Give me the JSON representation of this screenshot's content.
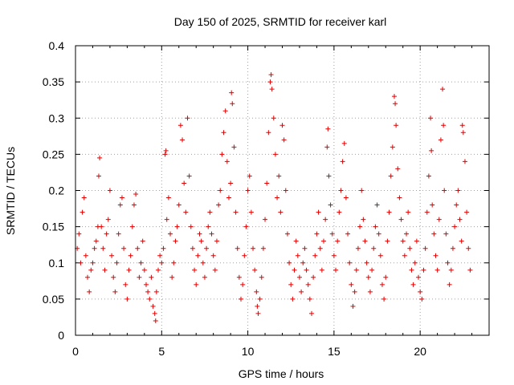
{
  "chart_data": {
    "type": "scatter",
    "title": "Day 150 of 2025, SRMTID for receiver karl",
    "xlabel": "GPS time / hours",
    "ylabel": "SRMTID / TECUs",
    "xlim": [
      0,
      24
    ],
    "ylim": [
      0,
      0.4
    ],
    "x_ticks": [
      0,
      5,
      10,
      15,
      20
    ],
    "x_tick_labels": [
      "0",
      "5",
      "10",
      "15",
      "20"
    ],
    "y_ticks": [
      0,
      0.05,
      0.1,
      0.15,
      0.2,
      0.25,
      0.3,
      0.35,
      0.4
    ],
    "y_tick_labels": [
      "0",
      "0.05",
      "0.1",
      "0.15",
      "0.2",
      "0.25",
      "0.3",
      "0.35",
      "0.4"
    ],
    "grid": true,
    "marker": "plus",
    "color": "#e00000",
    "series": [
      {
        "name": "SRMTID",
        "points": [
          [
            0.1,
            0.12
          ],
          [
            0.2,
            0.14
          ],
          [
            0.3,
            0.1
          ],
          [
            0.4,
            0.17
          ],
          [
            0.5,
            0.19
          ],
          [
            0.6,
            0.11
          ],
          [
            0.7,
            0.08
          ],
          [
            0.8,
            0.06
          ],
          [
            0.9,
            0.09
          ],
          [
            1.0,
            0.1
          ],
          [
            1.1,
            0.12
          ],
          [
            1.2,
            0.13
          ],
          [
            1.3,
            0.15
          ],
          [
            1.35,
            0.22
          ],
          [
            1.4,
            0.245
          ],
          [
            1.5,
            0.15
          ],
          [
            1.6,
            0.12
          ],
          [
            1.7,
            0.09
          ],
          [
            1.8,
            0.14
          ],
          [
            1.9,
            0.16
          ],
          [
            2.0,
            0.2
          ],
          [
            2.1,
            0.11
          ],
          [
            2.2,
            0.08
          ],
          [
            2.3,
            0.06
          ],
          [
            2.4,
            0.1
          ],
          [
            2.5,
            0.14
          ],
          [
            2.6,
            0.18
          ],
          [
            2.7,
            0.19
          ],
          [
            2.8,
            0.12
          ],
          [
            2.9,
            0.07
          ],
          [
            3.0,
            0.05
          ],
          [
            3.1,
            0.09
          ],
          [
            3.2,
            0.11
          ],
          [
            3.3,
            0.15
          ],
          [
            3.4,
            0.18
          ],
          [
            3.5,
            0.195
          ],
          [
            3.6,
            0.12
          ],
          [
            3.7,
            0.08
          ],
          [
            3.8,
            0.1
          ],
          [
            3.9,
            0.13
          ],
          [
            4.0,
            0.09
          ],
          [
            4.1,
            0.07
          ],
          [
            4.2,
            0.06
          ],
          [
            4.3,
            0.05
          ],
          [
            4.4,
            0.08
          ],
          [
            4.5,
            0.04
          ],
          [
            4.6,
            0.03
          ],
          [
            4.65,
            0.02
          ],
          [
            4.7,
            0.06
          ],
          [
            4.8,
            0.09
          ],
          [
            4.9,
            0.11
          ],
          [
            5.0,
            0.1
          ],
          [
            5.1,
            0.12
          ],
          [
            5.2,
            0.25
          ],
          [
            5.25,
            0.255
          ],
          [
            5.3,
            0.16
          ],
          [
            5.4,
            0.19
          ],
          [
            5.5,
            0.14
          ],
          [
            5.6,
            0.08
          ],
          [
            5.7,
            0.1
          ],
          [
            5.8,
            0.13
          ],
          [
            5.9,
            0.15
          ],
          [
            6.0,
            0.18
          ],
          [
            6.1,
            0.29
          ],
          [
            6.2,
            0.27
          ],
          [
            6.3,
            0.21
          ],
          [
            6.4,
            0.17
          ],
          [
            6.5,
            0.3
          ],
          [
            6.6,
            0.22
          ],
          [
            6.7,
            0.15
          ],
          [
            6.8,
            0.12
          ],
          [
            6.9,
            0.09
          ],
          [
            7.0,
            0.07
          ],
          [
            7.1,
            0.11
          ],
          [
            7.2,
            0.14
          ],
          [
            7.3,
            0.13
          ],
          [
            7.4,
            0.1
          ],
          [
            7.5,
            0.08
          ],
          [
            7.6,
            0.12
          ],
          [
            7.7,
            0.15
          ],
          [
            7.8,
            0.17
          ],
          [
            7.9,
            0.14
          ],
          [
            8.0,
            0.11
          ],
          [
            8.1,
            0.09
          ],
          [
            8.2,
            0.13
          ],
          [
            8.3,
            0.18
          ],
          [
            8.4,
            0.2
          ],
          [
            8.5,
            0.25
          ],
          [
            8.6,
            0.28
          ],
          [
            8.7,
            0.31
          ],
          [
            8.8,
            0.24
          ],
          [
            8.9,
            0.19
          ],
          [
            9.0,
            0.21
          ],
          [
            9.05,
            0.335
          ],
          [
            9.1,
            0.32
          ],
          [
            9.2,
            0.26
          ],
          [
            9.3,
            0.17
          ],
          [
            9.4,
            0.12
          ],
          [
            9.5,
            0.08
          ],
          [
            9.6,
            0.05
          ],
          [
            9.7,
            0.07
          ],
          [
            9.8,
            0.11
          ],
          [
            9.9,
            0.15
          ],
          [
            10.0,
            0.2
          ],
          [
            10.1,
            0.22
          ],
          [
            10.2,
            0.17
          ],
          [
            10.3,
            0.12
          ],
          [
            10.4,
            0.09
          ],
          [
            10.5,
            0.06
          ],
          [
            10.55,
            0.04
          ],
          [
            10.6,
            0.03
          ],
          [
            10.7,
            0.05
          ],
          [
            10.8,
            0.08
          ],
          [
            10.9,
            0.12
          ],
          [
            11.0,
            0.16
          ],
          [
            11.1,
            0.21
          ],
          [
            11.2,
            0.28
          ],
          [
            11.3,
            0.35
          ],
          [
            11.35,
            0.36
          ],
          [
            11.4,
            0.34
          ],
          [
            11.5,
            0.3
          ],
          [
            11.6,
            0.25
          ],
          [
            11.7,
            0.19
          ],
          [
            11.8,
            0.22
          ],
          [
            11.9,
            0.17
          ],
          [
            12.0,
            0.29
          ],
          [
            12.1,
            0.27
          ],
          [
            12.2,
            0.2
          ],
          [
            12.3,
            0.14
          ],
          [
            12.4,
            0.1
          ],
          [
            12.5,
            0.07
          ],
          [
            12.6,
            0.05
          ],
          [
            12.7,
            0.09
          ],
          [
            12.8,
            0.13
          ],
          [
            12.9,
            0.11
          ],
          [
            13.0,
            0.08
          ],
          [
            13.1,
            0.06
          ],
          [
            13.2,
            0.1
          ],
          [
            13.3,
            0.12
          ],
          [
            13.4,
            0.09
          ],
          [
            13.5,
            0.07
          ],
          [
            13.6,
            0.05
          ],
          [
            13.7,
            0.03
          ],
          [
            13.8,
            0.08
          ],
          [
            13.9,
            0.11
          ],
          [
            14.0,
            0.14
          ],
          [
            14.1,
            0.17
          ],
          [
            14.2,
            0.12
          ],
          [
            14.3,
            0.09
          ],
          [
            14.4,
            0.13
          ],
          [
            14.5,
            0.16
          ],
          [
            14.6,
            0.26
          ],
          [
            14.65,
            0.285
          ],
          [
            14.7,
            0.22
          ],
          [
            14.8,
            0.18
          ],
          [
            14.9,
            0.14
          ],
          [
            15.0,
            0.11
          ],
          [
            15.1,
            0.09
          ],
          [
            15.2,
            0.13
          ],
          [
            15.3,
            0.17
          ],
          [
            15.4,
            0.2
          ],
          [
            15.5,
            0.24
          ],
          [
            15.6,
            0.265
          ],
          [
            15.7,
            0.19
          ],
          [
            15.8,
            0.14
          ],
          [
            15.9,
            0.1
          ],
          [
            16.0,
            0.07
          ],
          [
            16.1,
            0.04
          ],
          [
            16.2,
            0.06
          ],
          [
            16.3,
            0.09
          ],
          [
            16.4,
            0.12
          ],
          [
            16.5,
            0.15
          ],
          [
            16.6,
            0.2
          ],
          [
            16.7,
            0.16
          ],
          [
            16.8,
            0.13
          ],
          [
            16.9,
            0.1
          ],
          [
            17.0,
            0.08
          ],
          [
            17.1,
            0.06
          ],
          [
            17.2,
            0.09
          ],
          [
            17.3,
            0.12
          ],
          [
            17.4,
            0.15
          ],
          [
            17.5,
            0.18
          ],
          [
            17.6,
            0.14
          ],
          [
            17.7,
            0.11
          ],
          [
            17.8,
            0.07
          ],
          [
            17.9,
            0.05
          ],
          [
            18.0,
            0.08
          ],
          [
            18.1,
            0.13
          ],
          [
            18.2,
            0.17
          ],
          [
            18.3,
            0.22
          ],
          [
            18.4,
            0.26
          ],
          [
            18.5,
            0.33
          ],
          [
            18.55,
            0.32
          ],
          [
            18.6,
            0.29
          ],
          [
            18.7,
            0.23
          ],
          [
            18.8,
            0.19
          ],
          [
            18.9,
            0.16
          ],
          [
            19.0,
            0.13
          ],
          [
            19.1,
            0.11
          ],
          [
            19.2,
            0.14
          ],
          [
            19.3,
            0.17
          ],
          [
            19.4,
            0.12
          ],
          [
            19.5,
            0.09
          ],
          [
            19.6,
            0.07
          ],
          [
            19.7,
            0.1
          ],
          [
            19.8,
            0.13
          ],
          [
            19.9,
            0.08
          ],
          [
            20.0,
            0.06
          ],
          [
            20.1,
            0.05
          ],
          [
            20.2,
            0.09
          ],
          [
            20.3,
            0.12
          ],
          [
            20.4,
            0.17
          ],
          [
            20.5,
            0.22
          ],
          [
            20.6,
            0.3
          ],
          [
            20.65,
            0.255
          ],
          [
            20.7,
            0.18
          ],
          [
            20.8,
            0.14
          ],
          [
            20.9,
            0.11
          ],
          [
            21.0,
            0.09
          ],
          [
            21.1,
            0.16
          ],
          [
            21.2,
            0.27
          ],
          [
            21.3,
            0.34
          ],
          [
            21.35,
            0.29
          ],
          [
            21.4,
            0.2
          ],
          [
            21.5,
            0.14
          ],
          [
            21.6,
            0.1
          ],
          [
            21.7,
            0.07
          ],
          [
            21.8,
            0.09
          ],
          [
            21.9,
            0.12
          ],
          [
            22.0,
            0.15
          ],
          [
            22.1,
            0.18
          ],
          [
            22.2,
            0.2
          ],
          [
            22.3,
            0.16
          ],
          [
            22.4,
            0.13
          ],
          [
            22.45,
            0.29
          ],
          [
            22.5,
            0.28
          ],
          [
            22.6,
            0.24
          ],
          [
            22.7,
            0.17
          ],
          [
            22.8,
            0.12
          ],
          [
            22.9,
            0.09
          ]
        ]
      }
    ]
  }
}
